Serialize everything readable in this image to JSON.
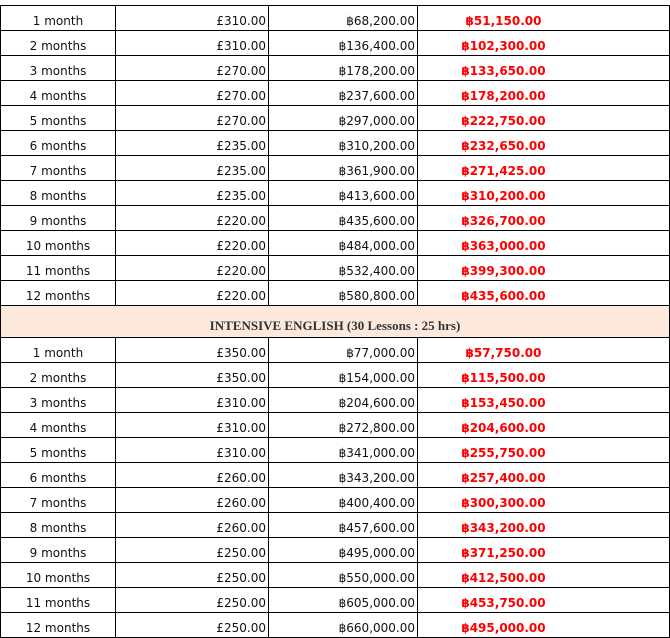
{
  "sections": [
    {
      "rows": [
        [
          "1 month",
          "£310.00",
          "฿68,200.00",
          "฿51,150.00"
        ],
        [
          "2 months",
          "£310.00",
          "฿136,400.00",
          "฿102,300.00"
        ],
        [
          "3 months",
          "£270.00",
          "฿178,200.00",
          "฿133,650.00"
        ],
        [
          "4 months",
          "£270.00",
          "฿237,600.00",
          "฿178,200.00"
        ],
        [
          "5 months",
          "£270.00",
          "฿297,000.00",
          "฿222,750.00"
        ],
        [
          "6 months",
          "£235.00",
          "฿310,200.00",
          "฿232,650.00"
        ],
        [
          "7 months",
          "£235.00",
          "฿361,900.00",
          "฿271,425.00"
        ],
        [
          "8 months",
          "£235.00",
          "฿413,600.00",
          "฿310,200.00"
        ],
        [
          "9 months",
          "£220.00",
          "฿435,600.00",
          "฿326,700.00"
        ],
        [
          "10 months",
          "£220.00",
          "฿484,000.00",
          "฿363,000.00"
        ],
        [
          "11 months",
          "£220.00",
          "฿532,400.00",
          "฿399,300.00"
        ],
        [
          "12 months",
          "£220.00",
          "฿580,800.00",
          "฿435,600.00"
        ]
      ]
    },
    {
      "title": "INTENSIVE ENGLISH (30 Lessons : 25 hrs)",
      "rows": [
        [
          "1 month",
          "£350.00",
          "฿77,000.00",
          "฿57,750.00"
        ],
        [
          "2 months",
          "£350.00",
          "฿154,000.00",
          "฿115,500.00"
        ],
        [
          "3 months",
          "£310.00",
          "฿204,600.00",
          "฿153,450.00"
        ],
        [
          "4 months",
          "£310.00",
          "฿272,800.00",
          "฿204,600.00"
        ],
        [
          "5 months",
          "£310.00",
          "฿341,000.00",
          "฿255,750.00"
        ],
        [
          "6 months",
          "£260.00",
          "฿343,200.00",
          "฿257,400.00"
        ],
        [
          "7 months",
          "£260.00",
          "฿400,400.00",
          "฿300,300.00"
        ],
        [
          "8 months",
          "£260.00",
          "฿457,600.00",
          "฿343,200.00"
        ],
        [
          "9 months",
          "£250.00",
          "฿495,000.00",
          "฿371,250.00"
        ],
        [
          "10 months",
          "£250.00",
          "฿550,000.00",
          "฿412,500.00"
        ],
        [
          "11 months",
          "£250.00",
          "฿605,000.00",
          "฿453,750.00"
        ],
        [
          "12 months",
          "£250.00",
          "฿660,000.00",
          "฿495,000.00"
        ]
      ]
    }
  ],
  "colors": {
    "discount_price": "#ff0000",
    "section_header_bg": "#fde9dc"
  }
}
